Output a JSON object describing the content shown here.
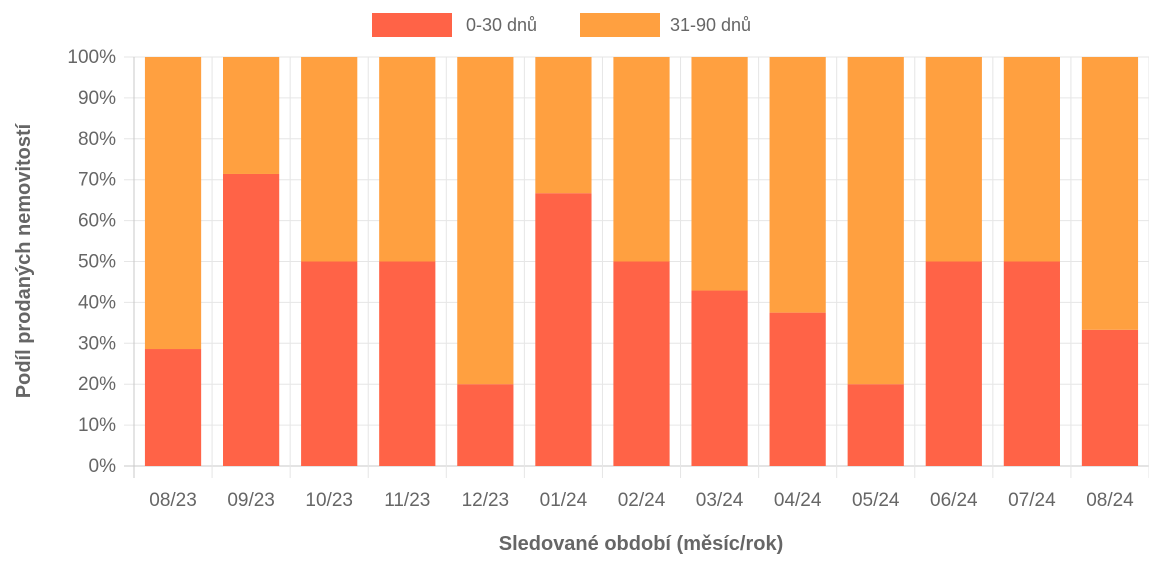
{
  "chart_data": {
    "type": "bar",
    "stacked": true,
    "categories": [
      "08/23",
      "09/23",
      "10/23",
      "11/23",
      "12/23",
      "01/24",
      "02/24",
      "03/24",
      "04/24",
      "05/24",
      "06/24",
      "07/24",
      "08/24"
    ],
    "series": [
      {
        "name": "0-30 dnů",
        "color": "#ff6347",
        "values": [
          28.6,
          71.4,
          50,
          50,
          20,
          66.7,
          50,
          42.9,
          37.5,
          20,
          50,
          50,
          33.3
        ]
      },
      {
        "name": "31-90 dnů",
        "color": "#ffa040",
        "values": [
          71.4,
          28.6,
          50,
          50,
          80,
          33.3,
          50,
          57.1,
          62.5,
          80,
          50,
          50,
          66.7
        ]
      }
    ],
    "xlabel": "Sledované období (měsíc/rok)",
    "ylabel": "Podíl prodaných nemovitostí",
    "ylim": [
      0,
      100
    ],
    "yticks": [
      "0%",
      "10%",
      "20%",
      "30%",
      "40%",
      "50%",
      "60%",
      "70%",
      "80%",
      "90%",
      "100%"
    ],
    "grid": true,
    "legend_position": "top"
  }
}
